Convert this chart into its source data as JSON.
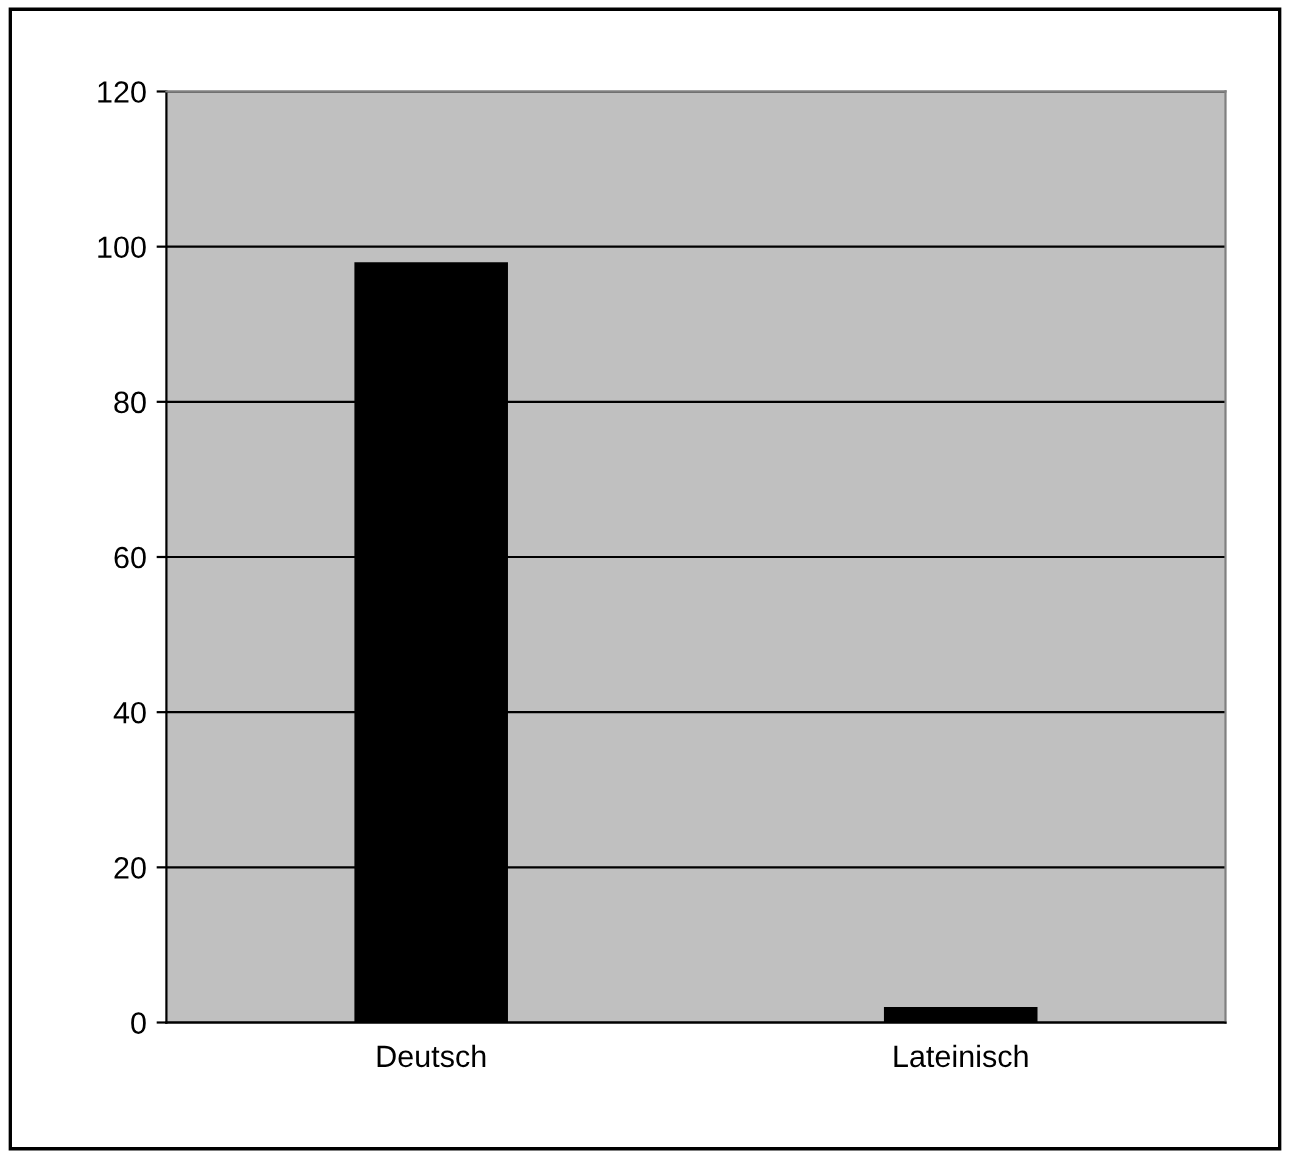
{
  "chart_data": {
    "type": "bar",
    "categories": [
      "Deutsch",
      "Lateinisch"
    ],
    "values": [
      98,
      2
    ],
    "color": "#000000",
    "ylim": [
      0,
      120
    ],
    "yticks": [
      0,
      20,
      40,
      60,
      80,
      100,
      120
    ],
    "grid": "y",
    "legend": false
  }
}
